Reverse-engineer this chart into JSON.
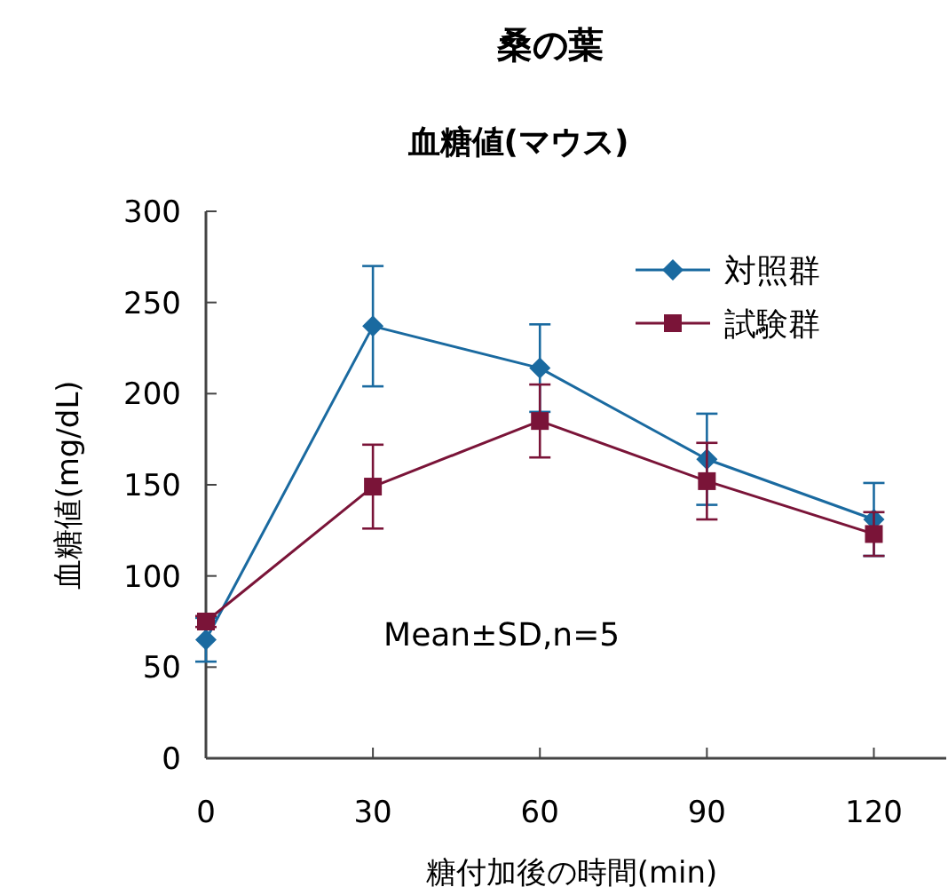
{
  "chart_data": {
    "type": "line",
    "title": "桑の葉",
    "subtitle": "血糖値(マウス)",
    "xlabel": "糖付加後の時間(min)",
    "ylabel": "血糖値(mg/dL)",
    "x": [
      0,
      30,
      60,
      90,
      120
    ],
    "xlim": [
      0,
      133
    ],
    "xticks": [
      0,
      30,
      60,
      90,
      120
    ],
    "ylim": [
      0,
      300
    ],
    "yticks": [
      0,
      50,
      100,
      150,
      200,
      250,
      300
    ],
    "grid": false,
    "legend": "top right",
    "annotations": [
      "Mean±SD,n=5"
    ],
    "series": [
      {
        "name": "対照群",
        "color": "#1a6aa0",
        "marker": "diamond",
        "values": [
          65,
          237,
          214,
          164,
          131
        ],
        "errors": [
          12,
          33,
          24,
          25,
          20
        ]
      },
      {
        "name": "試験群",
        "color": "#7a1438",
        "marker": "square",
        "values": [
          75,
          149,
          185,
          152,
          123
        ],
        "errors": [
          3,
          23,
          20,
          21,
          12
        ]
      }
    ]
  }
}
